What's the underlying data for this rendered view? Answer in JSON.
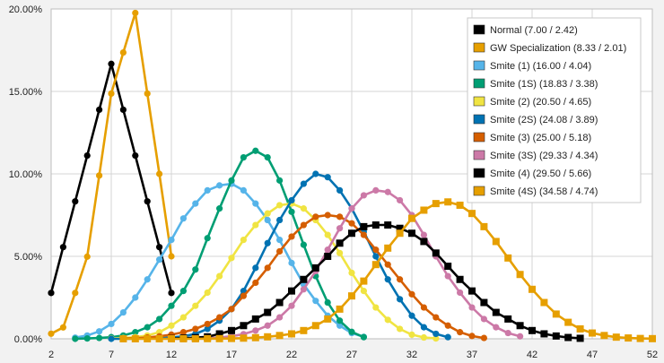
{
  "chart_data": {
    "type": "line",
    "title": "",
    "xlabel": "",
    "ylabel": "",
    "xlim": [
      2,
      52
    ],
    "ylim": [
      0,
      20
    ],
    "x_ticks": [
      2,
      7,
      12,
      17,
      22,
      27,
      32,
      37,
      42,
      47,
      52
    ],
    "y_ticks": [
      0,
      5,
      10,
      15,
      20
    ],
    "x_tick_labels": [
      "2",
      "7",
      "12",
      "17",
      "22",
      "27",
      "32",
      "37",
      "42",
      "47",
      "52"
    ],
    "y_tick_labels": [
      "0.00%",
      "5.00%",
      "10.00%",
      "15.00%",
      "20.00%"
    ],
    "y_unit": "percent",
    "grid": true,
    "legend_position": "top-right",
    "series": [
      {
        "name": "Normal (7.00 / 2.42)",
        "color": "#000000",
        "marker": "circle",
        "x": [
          2,
          3,
          4,
          5,
          6,
          7,
          8,
          9,
          10,
          11,
          12
        ],
        "y": [
          2.78,
          5.56,
          8.33,
          11.11,
          13.89,
          16.67,
          13.89,
          11.11,
          8.33,
          5.56,
          2.78
        ]
      },
      {
        "name": "GW Specialization (8.33 / 2.01)",
        "color": "#e69f00",
        "marker": "circle",
        "x": [
          2,
          3,
          4,
          5,
          6,
          7,
          8,
          9,
          10,
          11,
          12
        ],
        "y": [
          0.31,
          0.69,
          2.78,
          4.98,
          9.9,
          14.87,
          17.36,
          19.76,
          14.87,
          10.0,
          5.0
        ]
      },
      {
        "name": "Smite (1) (16.00 / 4.04)",
        "color": "#56b4e9",
        "marker": "circle",
        "x": [
          4,
          5,
          6,
          7,
          8,
          9,
          10,
          11,
          12,
          13,
          14,
          15,
          16,
          17,
          18,
          19,
          20,
          21,
          22,
          23,
          24,
          25,
          26,
          27,
          28
        ],
        "y": [
          0.07,
          0.2,
          0.45,
          0.9,
          1.6,
          2.5,
          3.6,
          4.8,
          6.0,
          7.3,
          8.2,
          9.0,
          9.3,
          9.4,
          9.0,
          8.2,
          7.2,
          6.0,
          4.6,
          3.3,
          2.3,
          1.4,
          0.8,
          0.35,
          0.12
        ]
      },
      {
        "name": "Smite (1S) (18.83 / 3.38)",
        "color": "#009e73",
        "marker": "circle",
        "x": [
          4,
          5,
          6,
          7,
          8,
          9,
          10,
          11,
          12,
          13,
          14,
          15,
          16,
          17,
          18,
          19,
          20,
          21,
          22,
          23,
          24,
          25,
          26,
          27,
          28
        ],
        "y": [
          0.0,
          0.02,
          0.05,
          0.1,
          0.2,
          0.4,
          0.7,
          1.2,
          2.0,
          2.9,
          4.2,
          6.1,
          7.9,
          9.6,
          11.0,
          11.4,
          11.0,
          9.6,
          7.7,
          5.7,
          3.8,
          2.2,
          1.1,
          0.42,
          0.1
        ]
      },
      {
        "name": "Smite (2) (20.50 / 4.65)",
        "color": "#f0e442",
        "marker": "circle",
        "x": [
          7,
          8,
          9,
          10,
          11,
          12,
          13,
          14,
          15,
          16,
          17,
          18,
          19,
          20,
          21,
          22,
          23,
          24,
          25,
          26,
          27,
          28,
          29,
          30,
          31,
          32,
          33,
          34
        ],
        "y": [
          0.02,
          0.05,
          0.1,
          0.2,
          0.4,
          0.8,
          1.3,
          2.0,
          2.8,
          3.8,
          4.9,
          6.0,
          6.9,
          7.6,
          8.1,
          8.2,
          7.9,
          7.2,
          6.3,
          5.2,
          4.0,
          2.9,
          1.9,
          1.15,
          0.6,
          0.25,
          0.08,
          0.02
        ]
      },
      {
        "name": "Smite (2S) (24.08 / 3.89)",
        "color": "#0072b2",
        "marker": "circle",
        "x": [
          7,
          8,
          9,
          10,
          11,
          12,
          13,
          14,
          15,
          16,
          17,
          18,
          19,
          20,
          21,
          22,
          23,
          24,
          25,
          26,
          27,
          28,
          29,
          30,
          31,
          32,
          33,
          34,
          35
        ],
        "y": [
          0.0,
          0.0,
          0.01,
          0.02,
          0.04,
          0.08,
          0.15,
          0.3,
          0.6,
          1.1,
          1.8,
          2.9,
          4.3,
          5.8,
          7.2,
          8.4,
          9.4,
          10.0,
          9.8,
          9.0,
          7.9,
          6.5,
          5.0,
          3.6,
          2.4,
          1.4,
          0.7,
          0.3,
          0.1
        ]
      },
      {
        "name": "Smite (3) (25.00 / 5.18)",
        "color": "#d55e00",
        "marker": "circle",
        "x": [
          8,
          9,
          10,
          11,
          12,
          13,
          14,
          15,
          16,
          17,
          18,
          19,
          20,
          21,
          22,
          23,
          24,
          25,
          26,
          27,
          28,
          29,
          30,
          31,
          32,
          33,
          34,
          35,
          36,
          37,
          38
        ],
        "y": [
          0.02,
          0.04,
          0.08,
          0.15,
          0.25,
          0.4,
          0.6,
          0.9,
          1.3,
          1.8,
          2.6,
          3.4,
          4.3,
          5.3,
          6.2,
          6.9,
          7.4,
          7.5,
          7.4,
          7.0,
          6.3,
          5.4,
          4.5,
          3.6,
          2.7,
          1.9,
          1.3,
          0.8,
          0.4,
          0.17,
          0.05
        ]
      },
      {
        "name": "Smite (3S) (29.33 / 4.34)",
        "color": "#cc79a7",
        "marker": "circle",
        "x": [
          12,
          13,
          14,
          15,
          16,
          17,
          18,
          19,
          20,
          21,
          22,
          23,
          24,
          25,
          26,
          27,
          28,
          29,
          30,
          31,
          32,
          33,
          34,
          35,
          36,
          37,
          38,
          39,
          40,
          41
        ],
        "y": [
          0.0,
          0.01,
          0.02,
          0.04,
          0.08,
          0.15,
          0.28,
          0.5,
          0.8,
          1.3,
          2.0,
          3.0,
          4.1,
          5.4,
          6.7,
          7.9,
          8.7,
          9.0,
          8.9,
          8.4,
          7.5,
          6.3,
          5.0,
          3.8,
          2.8,
          1.9,
          1.2,
          0.7,
          0.35,
          0.15
        ]
      },
      {
        "name": "Smite (4) (29.50 / 5.66)",
        "color": "#000000",
        "marker": "square",
        "x": [
          12,
          13,
          14,
          15,
          16,
          17,
          18,
          19,
          20,
          21,
          22,
          23,
          24,
          25,
          26,
          27,
          28,
          29,
          30,
          31,
          32,
          33,
          34,
          35,
          36,
          37,
          38,
          39,
          40,
          41,
          42,
          43,
          44,
          45,
          46
        ],
        "y": [
          0.02,
          0.04,
          0.07,
          0.12,
          0.3,
          0.5,
          0.8,
          1.2,
          1.6,
          2.2,
          2.9,
          3.6,
          4.3,
          5.0,
          5.8,
          6.4,
          6.8,
          6.9,
          6.9,
          6.7,
          6.4,
          5.9,
          5.2,
          4.4,
          3.6,
          2.9,
          2.2,
          1.6,
          1.2,
          0.8,
          0.5,
          0.3,
          0.17,
          0.08,
          0.03
        ]
      },
      {
        "name": "Smite (4S) (34.58 / 4.74)",
        "color": "#e69f00",
        "marker": "square",
        "x": [
          8,
          9,
          10,
          11,
          12,
          13,
          14,
          15,
          16,
          17,
          18,
          19,
          20,
          21,
          22,
          23,
          24,
          25,
          26,
          27,
          28,
          29,
          30,
          31,
          32,
          33,
          34,
          35,
          36,
          37,
          38,
          39,
          40,
          41,
          42,
          43,
          44,
          45,
          46,
          47,
          48,
          49,
          50,
          51,
          52
        ],
        "y": [
          0.0,
          0.0,
          0.0,
          0.0,
          0.0,
          0.0,
          0.0,
          0.01,
          0.01,
          0.02,
          0.04,
          0.07,
          0.12,
          0.2,
          0.3,
          0.5,
          0.8,
          1.2,
          1.8,
          2.6,
          3.5,
          4.5,
          5.5,
          6.4,
          7.3,
          7.8,
          8.2,
          8.3,
          8.1,
          7.6,
          6.8,
          5.9,
          4.9,
          3.9,
          3.0,
          2.2,
          1.5,
          1.0,
          0.6,
          0.35,
          0.2,
          0.1,
          0.05,
          0.02,
          0.01
        ]
      }
    ]
  }
}
